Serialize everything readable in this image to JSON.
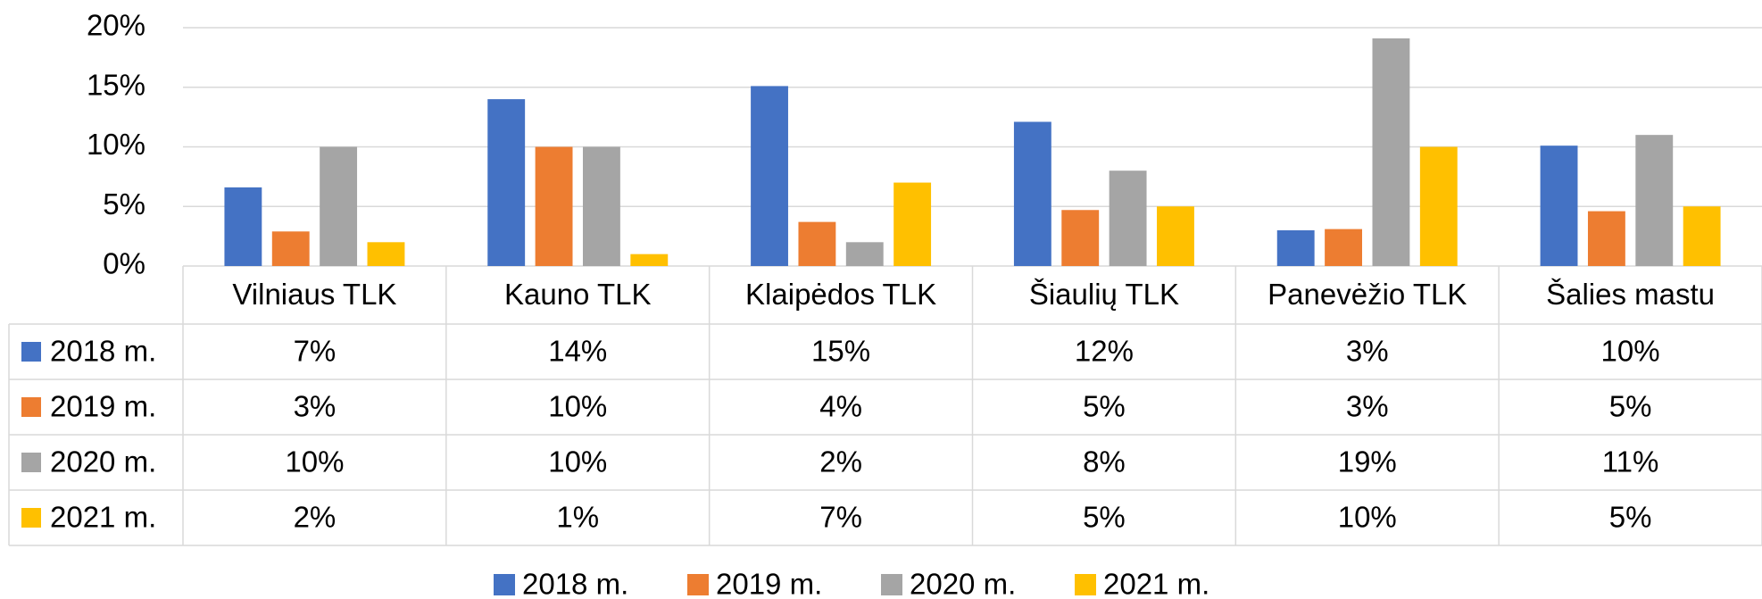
{
  "chart_data": {
    "type": "bar",
    "categories": [
      "Vilniaus TLK",
      "Kauno TLK",
      "Klaipėdos TLK",
      "Šiaulių TLK",
      "Panevėžio TLK",
      "Šalies mastu"
    ],
    "series": [
      {
        "name": "2018 m.",
        "color": "#4472c4",
        "values": [
          6.6,
          14,
          15.1,
          12.1,
          3,
          10.1
        ],
        "value_labels": [
          "7%",
          "14%",
          "15%",
          "12%",
          "3%",
          "10%"
        ]
      },
      {
        "name": "2019 m.",
        "color": "#ed7d31",
        "values": [
          2.9,
          10,
          3.7,
          4.7,
          3.1,
          4.6
        ],
        "value_labels": [
          "3%",
          "10%",
          "4%",
          "5%",
          "3%",
          "5%"
        ]
      },
      {
        "name": "2020 m.",
        "color": "#a5a5a5",
        "values": [
          10,
          10,
          2,
          8,
          19.1,
          11
        ],
        "value_labels": [
          "10%",
          "10%",
          "2%",
          "8%",
          "19%",
          "11%"
        ]
      },
      {
        "name": "2021 m.",
        "color": "#ffc000",
        "values": [
          2,
          1,
          7,
          5,
          10,
          5
        ],
        "value_labels": [
          "2%",
          "1%",
          "7%",
          "5%",
          "10%",
          "5%"
        ]
      }
    ],
    "ylim": [
      0,
      20
    ],
    "yticks": [
      {
        "value": 0,
        "label": "0%"
      },
      {
        "value": 5,
        "label": "5%"
      },
      {
        "value": 10,
        "label": "10%"
      },
      {
        "value": 15,
        "label": "15%"
      },
      {
        "value": 20,
        "label": "20%"
      }
    ],
    "grid": true,
    "legend": "bottom"
  }
}
